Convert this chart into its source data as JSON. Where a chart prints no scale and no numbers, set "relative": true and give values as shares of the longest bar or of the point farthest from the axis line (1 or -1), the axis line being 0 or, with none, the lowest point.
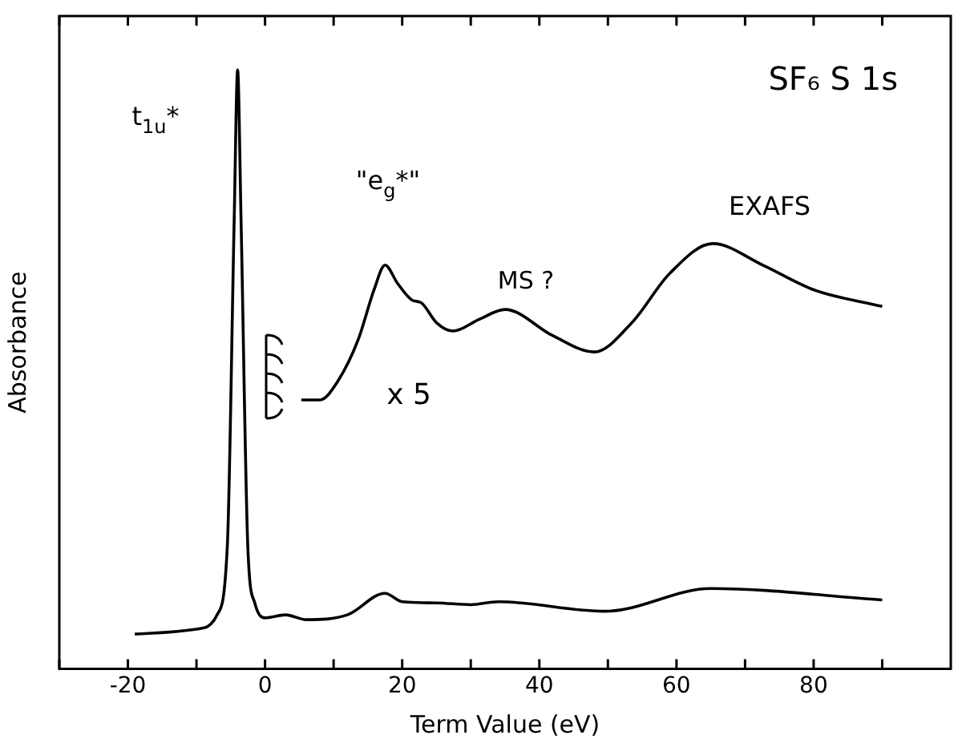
{
  "chart_data": {
    "type": "line",
    "relative": true,
    "xlabel": "Term Value (eV)",
    "ylabel": "Absorbance",
    "grid": false,
    "legend": false,
    "marker": "none",
    "line_style": "solid",
    "xlim": [
      -30,
      100
    ],
    "xticks": [
      {
        "value": -30,
        "label": null
      },
      -20,
      {
        "value": -10,
        "label": null
      },
      0,
      {
        "value": 10,
        "label": null
      },
      20,
      {
        "value": 30,
        "label": null
      },
      40,
      {
        "value": 50,
        "label": null
      },
      60,
      {
        "value": 70,
        "label": null
      },
      80,
      {
        "value": 90,
        "label": null
      }
    ],
    "series": [
      {
        "color": "#000000",
        "x": [
          -19,
          -9,
          -7,
          -5.5,
          -4.5,
          -4,
          -3.5,
          -2.5,
          -1.5,
          0,
          3,
          6,
          12,
          17.5,
          20,
          25,
          30,
          34,
          49.6,
          65,
          90
        ],
        "values": [
          0.058,
          0.068,
          0.09,
          0.205,
          0.75,
          1.0,
          0.75,
          0.2,
          0.11,
          0.085,
          0.09,
          0.082,
          0.09,
          0.126,
          0.112,
          0.11,
          0.107,
          0.112,
          0.096,
          0.134,
          0.115
        ]
      },
      {
        "color": "#000000",
        "x": [
          5.3,
          8,
          10.6,
          13.6,
          15.9,
          17.5,
          19.3,
          21.4,
          22.8,
          25,
          27.4,
          31.3,
          35,
          42,
          48,
          53.5,
          59,
          65.3,
          72.6,
          80,
          90
        ],
        "values": [
          0.449,
          0.449,
          0.48,
          0.55,
          0.633,
          0.674,
          0.644,
          0.616,
          0.611,
          0.578,
          0.564,
          0.584,
          0.6,
          0.556,
          0.529,
          0.578,
          0.66,
          0.71,
          0.674,
          0.633,
          0.605
        ]
      }
    ],
    "annotations": [
      "t$_{1u}$*",
      "\"e$_{g}$*\"",
      "MS ?",
      "EXAFS",
      "x 5",
      "SF₆ S 1s"
    ]
  }
}
